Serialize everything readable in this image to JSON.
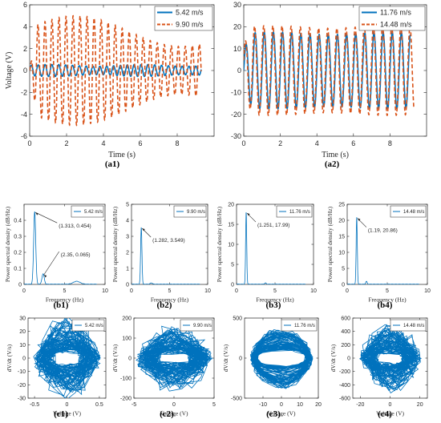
{
  "colors": {
    "blue": "#0072BD",
    "orange": "#D95319",
    "ink": "#262626"
  },
  "chart_data": [
    {
      "id": "a1",
      "type": "line",
      "caption": "(a1)",
      "xlabel": "Time (s)",
      "ylabel": "Voltage (V)",
      "xlim": [
        0,
        10
      ],
      "ylim": [
        -6,
        6
      ],
      "xticks": [
        0,
        2,
        4,
        6,
        8
      ],
      "yticks": [
        -6,
        -4,
        -2,
        0,
        2,
        4,
        6
      ],
      "xtick_labels": [
        "0",
        "2",
        "4",
        "6",
        "8"
      ],
      "ytick_labels": [
        "-6",
        "-4",
        "-2",
        "0",
        "2",
        "4",
        "6"
      ],
      "legend_position": "top-right",
      "series": [
        {
          "name": "5.42 m/s",
          "color": "#0072BD",
          "dashed": false,
          "t_end": 9.3,
          "freq_hz": 1.313,
          "amplitude_v": 0.55
        },
        {
          "name": "9.90 m/s",
          "color": "#D95319",
          "dashed": true,
          "t_end": 9.3,
          "freq_hz": 1.282,
          "amplitude_v": 5.0
        }
      ]
    },
    {
      "id": "a2",
      "type": "line",
      "caption": "(a2)",
      "xlabel": "Time (s)",
      "ylabel": "",
      "xlim": [
        0,
        10
      ],
      "ylim": [
        -30,
        30
      ],
      "xticks": [
        0,
        2,
        4,
        6,
        8
      ],
      "yticks": [
        -30,
        -20,
        -10,
        0,
        10,
        20,
        30
      ],
      "xtick_labels": [
        "0",
        "2",
        "4",
        "6",
        "8"
      ],
      "ytick_labels": [
        "-30",
        "-20",
        "-10",
        "0",
        "10",
        "20",
        "30"
      ],
      "legend_position": "top-right",
      "series": [
        {
          "name": "11.76 m/s",
          "color": "#0072BD",
          "dashed": false,
          "t_end": 9.1,
          "freq_hz": 2.0,
          "amplitude_v": 17.5
        },
        {
          "name": "14.48 m/s",
          "color": "#D95319",
          "dashed": true,
          "t_end": 9.3,
          "freq_hz": 2.0,
          "amplitude_v": 20.5
        }
      ]
    },
    {
      "id": "b1",
      "type": "line",
      "caption": "(b1)",
      "xlabel": "Frequency (Hz)",
      "ylabel": "Power spectral density (dB/Hz)",
      "xlim": [
        0,
        10
      ],
      "ylim": [
        0,
        0.5
      ],
      "xticks": [
        0,
        5,
        10
      ],
      "yticks": [
        0,
        0.1,
        0.2,
        0.3,
        0.4
      ],
      "xtick_labels": [
        "0",
        "5",
        "10"
      ],
      "ytick_labels": [
        "0",
        "0.1",
        "0.2",
        "0.3",
        "0.4"
      ],
      "legend_position": "top-right",
      "series": [
        {
          "name": "5.42 m/s",
          "color": "#0072BD",
          "peaks": [
            {
              "f": 1.313,
              "p": 0.454,
              "w": 0.18
            },
            {
              "f": 2.35,
              "p": 0.065,
              "w": 0.2
            },
            {
              "f": 6.5,
              "p": 0.018,
              "w": 0.6
            }
          ]
        }
      ],
      "annotations": [
        {
          "text": "(1.313, 0.454)",
          "x": 1.313,
          "y": 0.454
        },
        {
          "text": "(2.35, 0.065)",
          "x": 2.35,
          "y": 0.065
        }
      ]
    },
    {
      "id": "b2",
      "type": "line",
      "caption": "(b2)",
      "xlabel": "Frequency (Hz)",
      "ylabel": "Power spectral density (dB/Hz)",
      "xlim": [
        0,
        10
      ],
      "ylim": [
        0,
        5
      ],
      "xticks": [
        0,
        5,
        10
      ],
      "yticks": [
        0,
        1,
        2,
        3,
        4,
        5
      ],
      "xtick_labels": [
        "0",
        "5",
        "10"
      ],
      "ytick_labels": [
        "0",
        "1",
        "2",
        "3",
        "4",
        "5"
      ],
      "legend_position": "top-right",
      "series": [
        {
          "name": "9.90 m/s",
          "color": "#0072BD",
          "peaks": [
            {
              "f": 1.282,
              "p": 3.549,
              "w": 0.12
            },
            {
              "f": 2.6,
              "p": 0.08,
              "w": 0.2
            }
          ]
        }
      ],
      "annotations": [
        {
          "text": "(1.282, 3.549)",
          "x": 1.282,
          "y": 3.549
        }
      ]
    },
    {
      "id": "b3",
      "type": "line",
      "caption": "(b3)",
      "xlabel": "Frequency (Hz)",
      "ylabel": "Power spectral density (dB/Hz)",
      "xlim": [
        0,
        10
      ],
      "ylim": [
        0,
        20
      ],
      "xticks": [
        0,
        5,
        10
      ],
      "yticks": [
        0,
        5,
        10,
        15,
        20
      ],
      "xtick_labels": [
        "0",
        "5",
        "10"
      ],
      "ytick_labels": [
        "0",
        "5",
        "10",
        "15",
        "20"
      ],
      "legend_position": "top-right",
      "series": [
        {
          "name": "11.76 m/s",
          "color": "#0072BD",
          "peaks": [
            {
              "f": 1.251,
              "p": 17.99,
              "w": 0.1
            },
            {
              "f": 3.75,
              "p": 0.3,
              "w": 0.15
            }
          ]
        }
      ],
      "annotations": [
        {
          "text": "(1.251, 17.99)",
          "x": 1.251,
          "y": 17.99
        }
      ]
    },
    {
      "id": "b4",
      "type": "line",
      "caption": "(b4)",
      "xlabel": "Frequency (Hz)",
      "ylabel": "Power spectral density (dB/Hz)",
      "xlim": [
        0,
        10
      ],
      "ylim": [
        0,
        25
      ],
      "xticks": [
        0,
        5,
        10
      ],
      "yticks": [
        0,
        5,
        10,
        15,
        20,
        25
      ],
      "xtick_labels": [
        "0",
        "5",
        "10"
      ],
      "ytick_labels": [
        "0",
        "5",
        "10",
        "15",
        "20",
        "25"
      ],
      "legend_position": "top-right",
      "series": [
        {
          "name": "14.48 m/s",
          "color": "#0072BD",
          "peaks": [
            {
              "f": 1.19,
              "p": 20.86,
              "w": 0.1
            },
            {
              "f": 2.4,
              "p": 0.9,
              "w": 0.12
            }
          ]
        }
      ],
      "annotations": [
        {
          "text": "(1.19, 20.86)",
          "x": 1.19,
          "y": 20.86
        }
      ]
    },
    {
      "id": "c1",
      "type": "line",
      "caption": "(c1)",
      "xlabel": "Voltage (V)",
      "ylabel": "dV/dt (V/s)",
      "xlim": [
        -0.6,
        0.6
      ],
      "ylim": [
        -30,
        30
      ],
      "xticks": [
        -0.5,
        0,
        0.5
      ],
      "yticks": [
        -30,
        -20,
        -10,
        0,
        10,
        20,
        30
      ],
      "xtick_labels": [
        "-0.5",
        "0",
        "0.5"
      ],
      "ytick_labels": [
        "-30",
        "-20",
        "-10",
        "0",
        "10",
        "20",
        "30"
      ],
      "legend_position": "top-right",
      "series": [
        {
          "name": "5.42 m/s",
          "color": "#0072BD",
          "x_amplitude": 0.52,
          "y_amplitude": 27,
          "seed": 11
        }
      ]
    },
    {
      "id": "c2",
      "type": "line",
      "caption": "(c2)",
      "xlabel": "Voltage (V)",
      "ylabel": "dV/dt (V/s)",
      "xlim": [
        -5,
        5
      ],
      "ylim": [
        -200,
        200
      ],
      "xticks": [
        -5,
        0,
        5
      ],
      "yticks": [
        -200,
        -100,
        0,
        100,
        200
      ],
      "xtick_labels": [
        "-5",
        "0",
        "5"
      ],
      "ytick_labels": [
        "-200",
        "-100",
        "0",
        "100",
        "200"
      ],
      "legend_position": "top-right",
      "series": [
        {
          "name": "9.90 m/s",
          "color": "#0072BD",
          "x_amplitude": 4.8,
          "y_amplitude": 150,
          "seed": 23
        }
      ]
    },
    {
      "id": "c3",
      "type": "line",
      "caption": "(c3)",
      "xlabel": "Voltage (V)",
      "ylabel": "dV/dt (V/s)",
      "xlim": [
        -20,
        20
      ],
      "ylim": [
        -500,
        500
      ],
      "xticks": [
        -10,
        0,
        10,
        20
      ],
      "yticks": [
        -500,
        0,
        500
      ],
      "xtick_labels": [
        "-10",
        "0",
        "10",
        "20"
      ],
      "ytick_labels": [
        "-500",
        "0",
        "500"
      ],
      "legend_position": "top-right",
      "series": [
        {
          "name": "11.76 m/s",
          "color": "#0072BD",
          "x_amplitude": 17,
          "y_amplitude": 300,
          "seed": 37,
          "ring": true
        }
      ]
    },
    {
      "id": "c4",
      "type": "line",
      "caption": "(c4)",
      "xlabel": "Voltage (V)",
      "ylabel": "dV/dt (V/s)",
      "xlim": [
        -25,
        25
      ],
      "ylim": [
        -600,
        600
      ],
      "xticks": [
        -20,
        0,
        20
      ],
      "yticks": [
        -600,
        -400,
        -200,
        0,
        200,
        400,
        600
      ],
      "xtick_labels": [
        "-20",
        "0",
        "20"
      ],
      "ytick_labels": [
        "-600",
        "-400",
        "-200",
        "0",
        "200",
        "400",
        "600"
      ],
      "legend_position": "top-right",
      "series": [
        {
          "name": "14.48 m/s",
          "color": "#0072BD",
          "x_amplitude": 21,
          "y_amplitude": 470,
          "seed": 53
        }
      ]
    }
  ]
}
